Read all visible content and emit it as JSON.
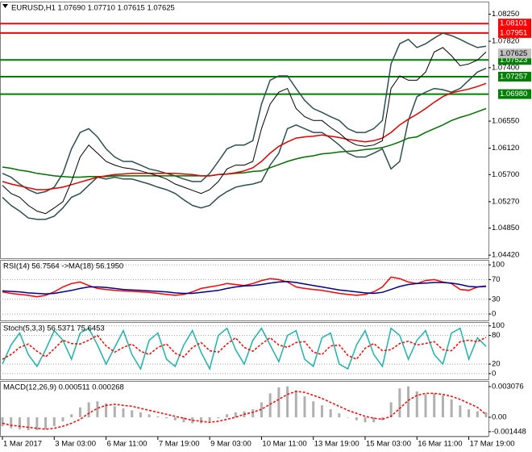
{
  "chart_data": [
    {
      "type": "line",
      "title": "EURUSD,H1  1.07690 1.07710 1.07615 1.07625",
      "categories": [
        "1 Mar 2017",
        null,
        null,
        null,
        null,
        null,
        "3 Mar 03:00",
        null,
        null,
        null,
        null,
        null,
        "6 Mar 11:00",
        null,
        null,
        null,
        null,
        null,
        "7 Mar 19:00",
        null,
        null,
        null,
        null,
        null,
        "9 Mar 03:00",
        null,
        null,
        null,
        null,
        null,
        "10 Mar 11:00",
        null,
        null,
        null,
        null,
        null,
        "13 Mar 19:00",
        null,
        null,
        null,
        null,
        null,
        "15 Mar 03:00",
        null,
        null,
        null,
        null,
        null,
        "16 Mar 11:00",
        null,
        null,
        null,
        null,
        null,
        "17 Mar 19:00",
        null,
        null
      ],
      "ylim": [
        1.0437,
        1.0845
      ],
      "yticks": [
        {
          "value": 1.0825,
          "label": "1.08250"
        },
        {
          "value": 1.0782,
          "label": "1.07820"
        },
        {
          "value": 1.074,
          "label": "1.07400"
        },
        {
          "value": 1.0655,
          "label": "1.06550"
        },
        {
          "value": 1.0612,
          "label": "1.06120"
        },
        {
          "value": 1.057,
          "label": "1.05700"
        },
        {
          "value": 1.0527,
          "label": "1.05270"
        },
        {
          "value": 1.0485,
          "label": "1.04850"
        },
        {
          "value": 1.0442,
          "label": "1.04420"
        }
      ],
      "grid": false,
      "levels": [
        {
          "value": 1.08101,
          "label": "1.08101",
          "color": "#ff0000"
        },
        {
          "value": 1.07951,
          "label": "1.07951",
          "color": "#ff0000"
        },
        {
          "value": 1.07523,
          "label": "1.07523",
          "color": "#008000"
        },
        {
          "value": 1.07257,
          "label": "1.07257",
          "color": "#008000"
        },
        {
          "value": 1.0698,
          "label": "1.06980",
          "color": "#008000"
        }
      ],
      "last_price": {
        "value": 1.07625,
        "label": "1.07625"
      },
      "series": [
        {
          "color": "#2f4f4f",
          "style": "solid",
          "values": [
            1.0572,
            1.0566,
            1.0555,
            1.0546,
            1.054,
            1.0543,
            1.055,
            1.0572,
            1.0611,
            1.0637,
            1.0643,
            1.063,
            1.0611,
            1.0598,
            1.0591,
            1.0591,
            1.0585,
            1.0579,
            1.0576,
            1.0572,
            1.0568,
            1.0563,
            1.0559,
            1.0559,
            1.0572,
            1.0591,
            1.0611,
            1.0617,
            1.0617,
            1.0624,
            1.0682,
            1.072,
            1.0727,
            1.0727,
            1.0707,
            1.0688,
            1.0675,
            1.0669,
            1.0662,
            1.0656,
            1.0643,
            1.0637,
            1.0637,
            1.0643,
            1.0656,
            1.0746,
            1.0778,
            1.0785,
            1.0772,
            1.0778,
            1.0787,
            1.0795,
            1.0791,
            1.0785,
            1.0778,
            1.0772,
            1.0774
          ]
        },
        {
          "color": "#2f4f4f",
          "style": "solid",
          "values": [
            1.0534,
            1.0521,
            1.0512,
            1.0501,
            1.0499,
            1.0499,
            1.0504,
            1.0517,
            1.0534,
            1.054,
            1.0553,
            1.0566,
            1.0563,
            1.0566,
            1.0563,
            1.0563,
            1.0559,
            1.0555,
            1.055,
            1.0546,
            1.054,
            1.053,
            1.0521,
            1.0517,
            1.0521,
            1.0534,
            1.0543,
            1.055,
            1.0553,
            1.0555,
            1.0559,
            1.0585,
            1.0604,
            1.0643,
            1.0649,
            1.0643,
            1.0637,
            1.0637,
            1.0628,
            1.0617,
            1.0604,
            1.0598,
            1.0598,
            1.0604,
            1.0611,
            1.0579,
            1.0591,
            1.0656,
            1.0694,
            1.0701,
            1.0707,
            1.0705,
            1.0701,
            1.0707,
            1.072,
            1.0733,
            1.0739
          ]
        },
        {
          "color": "#007000",
          "style": "solid",
          "values": [
            1.0582,
            1.058,
            1.0577,
            1.0575,
            1.0572,
            1.057,
            1.0568,
            1.0567,
            1.0566,
            1.0566,
            1.0567,
            1.0567,
            1.0567,
            1.0568,
            1.0568,
            1.0568,
            1.0568,
            1.0568,
            1.0568,
            1.0568,
            1.0568,
            1.0568,
            1.0568,
            1.0568,
            1.0568,
            1.057,
            1.0571,
            1.0572,
            1.0573,
            1.0575,
            1.0576,
            1.0581,
            1.0586,
            1.0591,
            1.0595,
            1.0598,
            1.06,
            1.0603,
            1.0604,
            1.0606,
            1.0607,
            1.0608,
            1.061,
            1.0611,
            1.0613,
            1.0617,
            1.0622,
            1.0628,
            1.063,
            1.0637,
            1.0643,
            1.0649,
            1.0656,
            1.0661,
            1.0665,
            1.067,
            1.0675
          ]
        },
        {
          "color": "#e00000",
          "style": "solid",
          "values": [
            1.0559,
            1.0555,
            1.0552,
            1.0549,
            1.0546,
            1.0546,
            1.0548,
            1.055,
            1.0554,
            1.0558,
            1.0562,
            1.0566,
            1.0568,
            1.057,
            1.0571,
            1.0572,
            1.0572,
            1.0572,
            1.0572,
            1.0572,
            1.0572,
            1.0571,
            1.057,
            1.0568,
            1.0568,
            1.057,
            1.0571,
            1.0573,
            1.0576,
            1.0581,
            1.0591,
            1.0604,
            1.0615,
            1.0622,
            1.0628,
            1.063,
            1.0631,
            1.0633,
            1.0631,
            1.0629,
            1.0626,
            1.0624,
            1.0622,
            1.0624,
            1.0628,
            1.0637,
            1.0649,
            1.0658,
            1.0666,
            1.0675,
            1.0685,
            1.0694,
            1.07,
            1.0703,
            1.0706,
            1.071,
            1.0715
          ]
        },
        {
          "color": "#000000",
          "style": "solid",
          "values": [
            1.0553,
            1.054,
            1.0534,
            1.0521,
            1.0512,
            1.0508,
            1.0517,
            1.0527,
            1.0559,
            1.0598,
            1.0617,
            1.0604,
            1.0591,
            1.0585,
            1.0581,
            1.0579,
            1.0576,
            1.0572,
            1.0568,
            1.0563,
            1.0555,
            1.055,
            1.0545,
            1.054,
            1.0546,
            1.0559,
            1.0579,
            1.0585,
            1.0585,
            1.0591,
            1.0643,
            1.0682,
            1.0701,
            1.0707,
            1.0675,
            1.0662,
            1.0656,
            1.0656,
            1.0645,
            1.0636,
            1.0624,
            1.0617,
            1.0615,
            1.0617,
            1.0624,
            1.0707,
            1.0727,
            1.072,
            1.072,
            1.0733,
            1.0765,
            1.0772,
            1.0759,
            1.0743,
            1.0746,
            1.0752,
            1.0765
          ]
        }
      ]
    },
    {
      "type": "line",
      "title": "RSI(14) 56.7564  ->MA(18) 56.1950",
      "ylim": [
        -13,
        110
      ],
      "yticks": [
        100,
        70,
        30,
        0
      ],
      "grid": true,
      "series": [
        {
          "color": "#ff0000",
          "style": "solid",
          "values": [
            45,
            42,
            40,
            38,
            35,
            38,
            45,
            55,
            62,
            65,
            58,
            52,
            50,
            48,
            47,
            46,
            45,
            44,
            42,
            40,
            38,
            40,
            45,
            52,
            55,
            58,
            62,
            60,
            58,
            62,
            68,
            72,
            70,
            65,
            55,
            52,
            50,
            48,
            45,
            42,
            40,
            38,
            40,
            45,
            55,
            75,
            72,
            65,
            62,
            68,
            70,
            65,
            62,
            50,
            48,
            55,
            57
          ]
        },
        {
          "color": "#00008b",
          "style": "solid",
          "values": [
            47,
            46,
            45,
            43,
            42,
            41,
            42,
            45,
            48,
            52,
            55,
            55,
            54,
            52,
            50,
            49,
            48,
            47,
            46,
            45,
            43,
            42,
            42,
            44,
            46,
            48,
            52,
            55,
            57,
            58,
            60,
            63,
            65,
            66,
            64,
            61,
            58,
            55,
            52,
            49,
            47,
            45,
            43,
            42,
            44,
            50,
            56,
            60,
            62,
            63,
            64,
            64,
            63,
            60,
            56,
            55,
            56
          ]
        }
      ]
    },
    {
      "type": "line",
      "title": "Stoch(5,3,3) 56.5371  75.6453",
      "ylim": [
        -12,
        108
      ],
      "yticks": [
        100,
        80,
        20,
        0
      ],
      "grid": true,
      "series": [
        {
          "color": "#20b2aa",
          "style": "solid",
          "values": [
            20,
            60,
            85,
            40,
            15,
            50,
            90,
            70,
            30,
            85,
            95,
            60,
            20,
            55,
            90,
            40,
            10,
            70,
            85,
            30,
            15,
            60,
            90,
            45,
            10,
            80,
            95,
            50,
            20,
            70,
            95,
            60,
            25,
            80,
            90,
            30,
            15,
            75,
            85,
            20,
            10,
            60,
            90,
            40,
            15,
            95,
            80,
            30,
            70,
            90,
            40,
            20,
            85,
            95,
            30,
            75,
            57
          ]
        },
        {
          "color": "#ff0000",
          "style": "dashed",
          "values": [
            30,
            40,
            55,
            62,
            47,
            35,
            52,
            70,
            63,
            62,
            70,
            80,
            58,
            45,
            55,
            62,
            47,
            40,
            55,
            62,
            43,
            35,
            55,
            65,
            48,
            45,
            62,
            75,
            55,
            47,
            62,
            75,
            60,
            55,
            65,
            67,
            45,
            40,
            58,
            60,
            38,
            30,
            53,
            63,
            48,
            50,
            63,
            68,
            60,
            63,
            67,
            50,
            48,
            67,
            70,
            67,
            76
          ]
        }
      ]
    },
    {
      "type": "bar",
      "title": "MACD(12,26,9) 0.000511 0.000268",
      "ylim": [
        -0.001862,
        0.003643
      ],
      "yticks": [
        0.003076,
        {
          "value": 0,
          "label": "0.00"
        },
        -0.001448
      ],
      "grid": false,
      "series": [
        {
          "color": "#b0b0b0",
          "style": "bars",
          "values": [
            -0.0009,
            -0.0011,
            -0.0012,
            -0.0013,
            -0.0013,
            -0.0012,
            -0.0009,
            -0.0004,
            0.0003,
            0.001,
            0.0015,
            0.0016,
            0.0014,
            0.0011,
            0.0009,
            0.0007,
            0.0005,
            0.0003,
            0.0001,
            -0.0001,
            -0.0003,
            -0.0005,
            -0.0006,
            -0.0006,
            -0.0004,
            -0.0001,
            0.0003,
            0.0005,
            0.0006,
            0.0008,
            0.0015,
            0.0024,
            0.003,
            0.0031,
            0.0027,
            0.0021,
            0.0016,
            0.0012,
            0.0008,
            0.0004,
            0,
            -0.0003,
            -0.0005,
            -0.0005,
            -0.0003,
            0.0015,
            0.0029,
            0.0031,
            0.0026,
            0.0023,
            0.0024,
            0.0022,
            0.0018,
            0.0012,
            0.0008,
            0.0006,
            0.000511
          ]
        },
        {
          "color": "#ff0000",
          "style": "dashed",
          "values": [
            -0.0006,
            -0.0008,
            -0.0009,
            -0.001,
            -0.0011,
            -0.0012,
            -0.0011,
            -0.0009,
            -0.0006,
            -0.0002,
            0.0004,
            0.0009,
            0.0012,
            0.0013,
            0.0012,
            0.0011,
            0.0009,
            0.0007,
            0.0005,
            0.0003,
            0.0001,
            -0.0001,
            -0.0003,
            -0.0004,
            -0.0005,
            -0.0004,
            -0.0002,
            0,
            0.0003,
            0.0005,
            0.0008,
            0.0013,
            0.0018,
            0.0023,
            0.0026,
            0.0025,
            0.0022,
            0.0019,
            0.0015,
            0.0011,
            0.0007,
            0.0004,
            0.0001,
            -0.0001,
            -0.0002,
            0.0001,
            0.0009,
            0.0017,
            0.0022,
            0.0024,
            0.0024,
            0.0023,
            0.0021,
            0.0018,
            0.0014,
            0.001,
            0.000268
          ]
        }
      ]
    }
  ]
}
